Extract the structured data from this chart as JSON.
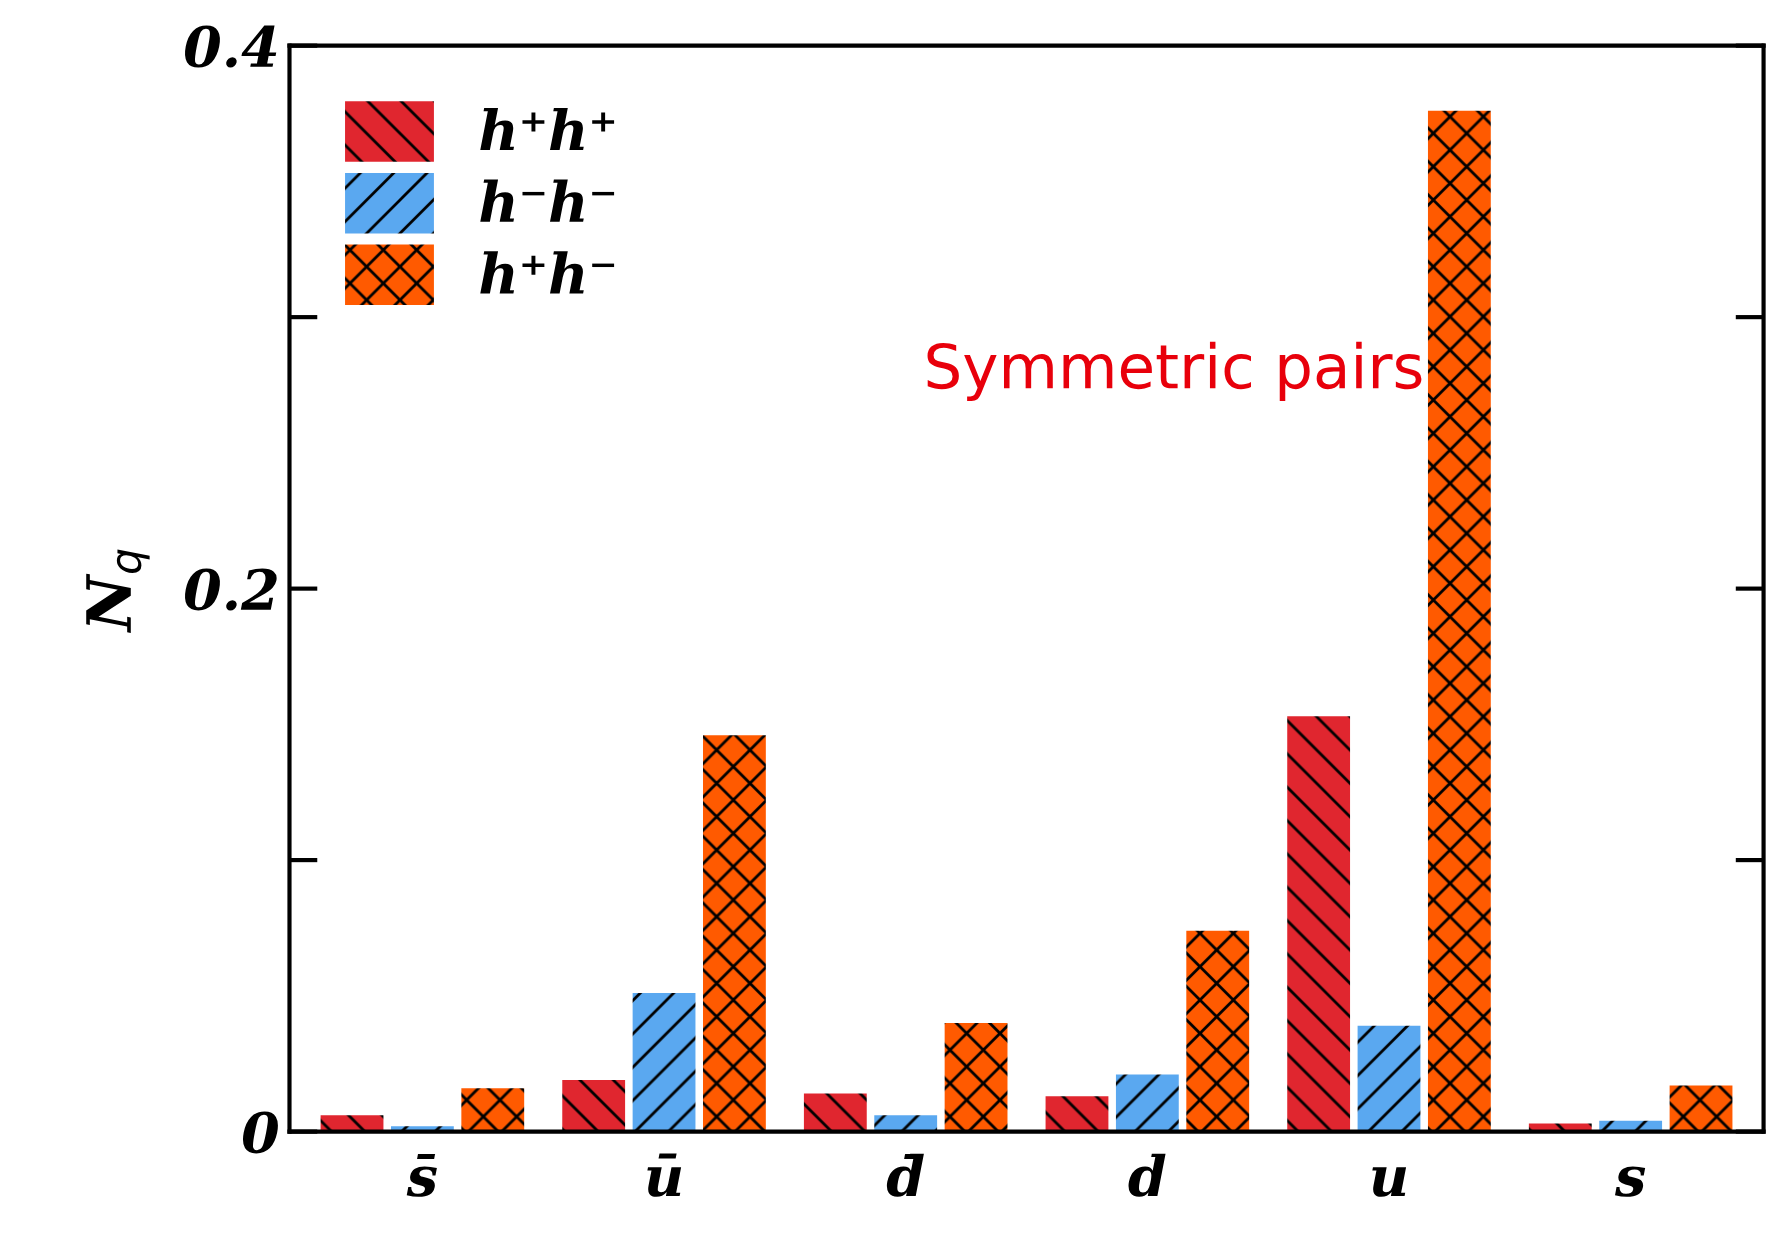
{
  "chart_data": {
    "type": "bar",
    "ylabel": "N$_{q}$",
    "categories": [
      "s̄",
      "ū",
      "d̄",
      "d",
      "u",
      "s"
    ],
    "series": [
      {
        "name": "h⁺h⁺",
        "color": "#e0262f",
        "values": [
          0.006,
          0.019,
          0.014,
          0.013,
          0.153,
          0.003
        ]
      },
      {
        "name": "h⁻h⁻",
        "color": "#5aa8f0",
        "values": [
          0.002,
          0.051,
          0.006,
          0.021,
          0.039,
          0.004
        ]
      },
      {
        "name": "h⁺h⁻",
        "color": "#ff5a00",
        "values": [
          0.016,
          0.146,
          0.04,
          0.074,
          0.376,
          0.017
        ]
      }
    ],
    "ylim": [
      0,
      0.4
    ],
    "yticks": [
      0,
      {
        "value": 0.1,
        "label": null
      },
      {
        "value": 0.2,
        "label": "0.2"
      },
      {
        "value": 0.3,
        "label": null
      },
      {
        "value": 0.4,
        "label": "0.4"
      }
    ],
    "grid": false,
    "legend": "top left",
    "annotations": [
      "Symmetric pairs"
    ]
  }
}
